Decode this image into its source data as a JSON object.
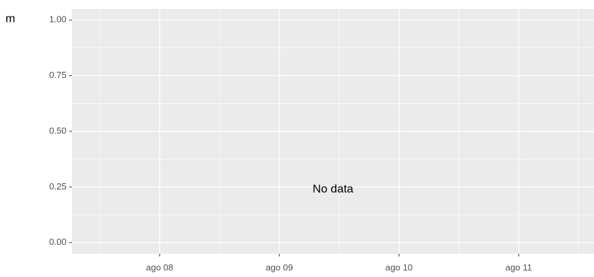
{
  "chart_data": {
    "type": "line",
    "y_label": "m",
    "annotation": "No data",
    "categories": [
      "ago 08",
      "ago 09",
      "ago 10",
      "ago 11"
    ],
    "ylim": [
      -0.05,
      1.05
    ],
    "yticks": [
      {
        "value": 0,
        "label": "0.00"
      },
      {
        "value": 0.25,
        "label": "0.25"
      },
      {
        "value": 0.5,
        "label": "0.50"
      },
      {
        "value": 0.75,
        "label": "0.75"
      },
      {
        "value": 1,
        "label": "1.00"
      }
    ],
    "grid": true
  }
}
